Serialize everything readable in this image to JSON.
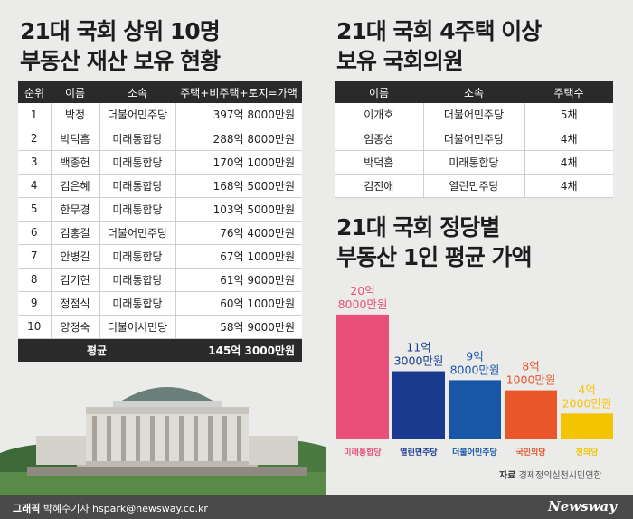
{
  "titles": {
    "t1_line1": "21대 국회 상위 10명",
    "t1_line2": "부동산 재산 보유 현황",
    "t2_line1": "21대 국회 4주택 이상",
    "t2_line2": "보유 국회의원",
    "t3_line1": "21대 국회 정당별",
    "t3_line2": "부동산 1인 평균 가액"
  },
  "table1": {
    "headers": [
      "순위",
      "이름",
      "소속",
      "주택+비주택+토지=가액"
    ],
    "rows": [
      {
        "rank": "1",
        "name": "박정",
        "party": "더불어민주당",
        "amount": "397억 8000만원"
      },
      {
        "rank": "2",
        "name": "박덕흠",
        "party": "미래통합당",
        "amount": "288억 8000만원"
      },
      {
        "rank": "3",
        "name": "백종헌",
        "party": "미래통합당",
        "amount": "170억 1000만원"
      },
      {
        "rank": "4",
        "name": "김은혜",
        "party": "미래통합당",
        "amount": "168억 5000만원"
      },
      {
        "rank": "5",
        "name": "한무경",
        "party": "미래통합당",
        "amount": "103억 5000만원"
      },
      {
        "rank": "6",
        "name": "김홍걸",
        "party": "더불어민주당",
        "amount": "76억 4000만원"
      },
      {
        "rank": "7",
        "name": "안병길",
        "party": "미래통합당",
        "amount": "67억 1000만원"
      },
      {
        "rank": "8",
        "name": "김기현",
        "party": "미래통합당",
        "amount": "61억 9000만원"
      },
      {
        "rank": "9",
        "name": "정점식",
        "party": "미래통합당",
        "amount": "60억 1000만원"
      },
      {
        "rank": "10",
        "name": "양정숙",
        "party": "더불어시민당",
        "amount": "58억 9000만원"
      }
    ],
    "avg_label": "평균",
    "avg_value": "145억 3000만원"
  },
  "table2": {
    "headers": [
      "이름",
      "소속",
      "주택수"
    ],
    "rows": [
      {
        "name": "이개호",
        "party": "더불어민주당",
        "count": "5채"
      },
      {
        "name": "임종성",
        "party": "더불어민주당",
        "count": "4채"
      },
      {
        "name": "박덕흠",
        "party": "미래통합당",
        "count": "4채"
      },
      {
        "name": "김진애",
        "party": "열린민주당",
        "count": "4채"
      }
    ]
  },
  "chart_data": {
    "type": "bar",
    "categories": [
      "미래통합당",
      "열린민주당",
      "더불어민주당",
      "국민의당",
      "정의당"
    ],
    "values": [
      20.8,
      11.3,
      9.8,
      8.1,
      4.2
    ],
    "labels": [
      [
        "20억",
        "8000만원"
      ],
      [
        "11억",
        "3000만원"
      ],
      [
        "9억",
        "8000만원"
      ],
      [
        "8억",
        "1000만원"
      ],
      [
        "4억",
        "2000만원"
      ]
    ],
    "colors": [
      "#e8507a",
      "#1a3a8f",
      "#1856a8",
      "#e8562a",
      "#f5c400"
    ],
    "ylim": [
      0,
      22
    ]
  },
  "source": {
    "label": "자료",
    "text": "경제정의실천시민연합"
  },
  "footer": {
    "credit_label": "그래픽",
    "credit": "박혜수기자 hspark@newsway.co.kr",
    "brand": "Newsway"
  }
}
